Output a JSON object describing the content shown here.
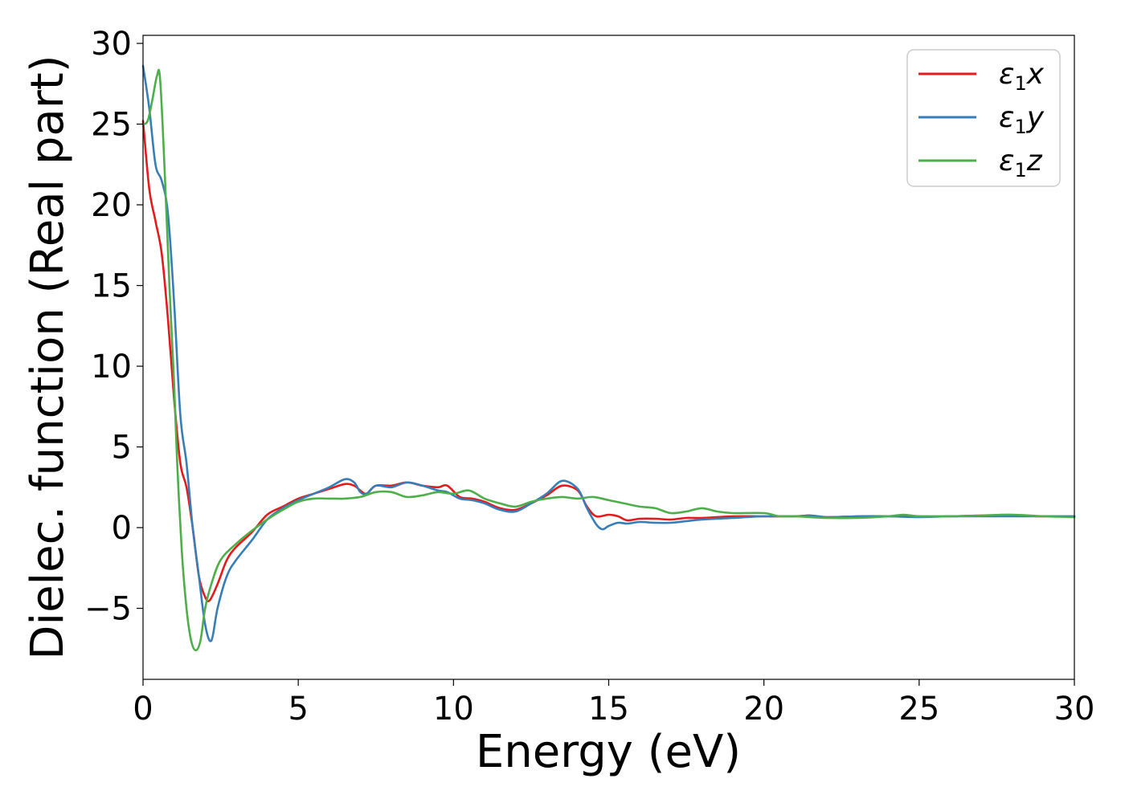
{
  "chart_data": {
    "type": "line",
    "title": "",
    "xlabel": "Energy (eV)",
    "ylabel": "Dielec. function (Real part)",
    "xlim": [
      0,
      30
    ],
    "ylim": [
      -9.4,
      30.5
    ],
    "xticks": [
      0,
      5,
      10,
      15,
      20,
      25,
      30
    ],
    "yticks": [
      -5,
      0,
      5,
      10,
      15,
      20,
      25,
      30
    ],
    "xtick_labels": [
      "0",
      "5",
      "10",
      "15",
      "20",
      "25",
      "30"
    ],
    "ytick_labels": [
      "−5",
      "0",
      "5",
      "10",
      "15",
      "20",
      "25",
      "30"
    ],
    "grid": false,
    "legend_position": "top-right",
    "series": [
      {
        "name": "ε₁x",
        "legend_base": "ε",
        "legend_sub": "1",
        "legend_var": "x",
        "color": "#e41a1c",
        "x": [
          0,
          0.2,
          0.4,
          0.6,
          0.8,
          1.0,
          1.2,
          1.4,
          1.6,
          1.8,
          2.0,
          2.15,
          2.4,
          2.7,
          3.0,
          3.5,
          4.0,
          4.5,
          5.0,
          5.5,
          6.0,
          6.5,
          6.8,
          7.0,
          7.2,
          7.5,
          8.0,
          8.5,
          9.0,
          9.5,
          9.8,
          10.2,
          10.6,
          11.0,
          11.5,
          12.0,
          12.5,
          13.0,
          13.5,
          14.0,
          14.3,
          14.6,
          15.0,
          15.3,
          15.6,
          16.0,
          16.5,
          17.0,
          17.5,
          18.0,
          19.0,
          20.0,
          21.0,
          21.5,
          22.0,
          23.0,
          24.0,
          25.0,
          26.0,
          27.0,
          28.0,
          29.0,
          30.0
        ],
        "values": [
          25.2,
          21.0,
          19.0,
          17.0,
          13.0,
          8.0,
          4.0,
          2.5,
          0.0,
          -3.0,
          -4.3,
          -4.5,
          -3.5,
          -2.0,
          -1.2,
          -0.3,
          0.8,
          1.3,
          1.8,
          2.1,
          2.4,
          2.7,
          2.6,
          2.3,
          2.1,
          2.6,
          2.6,
          2.8,
          2.6,
          2.5,
          2.6,
          1.9,
          1.8,
          1.6,
          1.2,
          1.1,
          1.5,
          2.0,
          2.6,
          2.3,
          1.3,
          0.7,
          0.8,
          0.7,
          0.45,
          0.55,
          0.55,
          0.5,
          0.6,
          0.6,
          0.7,
          0.7,
          0.7,
          0.75,
          0.65,
          0.7,
          0.7,
          0.7,
          0.7,
          0.75,
          0.75,
          0.7,
          0.7
        ]
      },
      {
        "name": "ε₁y",
        "legend_base": "ε",
        "legend_sub": "1",
        "legend_var": "y",
        "color": "#377eb8",
        "x": [
          0,
          0.2,
          0.4,
          0.6,
          0.8,
          1.0,
          1.2,
          1.4,
          1.6,
          1.8,
          2.0,
          2.2,
          2.4,
          2.7,
          3.0,
          3.5,
          4.0,
          4.5,
          5.0,
          5.5,
          6.0,
          6.5,
          6.8,
          7.0,
          7.2,
          7.5,
          8.0,
          8.5,
          9.0,
          9.5,
          9.8,
          10.2,
          10.6,
          11.0,
          11.5,
          12.0,
          12.5,
          13.0,
          13.5,
          14.0,
          14.3,
          14.6,
          14.8,
          15.0,
          15.3,
          15.6,
          16.0,
          16.5,
          17.0,
          17.5,
          18.0,
          19.0,
          20.0,
          21.0,
          21.5,
          22.0,
          23.0,
          24.0,
          25.0,
          26.0,
          27.0,
          28.0,
          29.0,
          30.0
        ],
        "values": [
          28.6,
          26.0,
          22.5,
          21.5,
          19.5,
          14.0,
          7.0,
          4.0,
          0.0,
          -3.0,
          -6.0,
          -7.0,
          -5.0,
          -3.0,
          -2.0,
          -0.8,
          0.5,
          1.2,
          1.7,
          2.1,
          2.5,
          3.0,
          2.8,
          2.2,
          2.1,
          2.6,
          2.5,
          2.8,
          2.6,
          2.3,
          2.2,
          1.8,
          1.7,
          1.5,
          1.1,
          1.0,
          1.5,
          2.1,
          2.9,
          2.4,
          1.2,
          0.2,
          -0.1,
          0.1,
          0.3,
          0.25,
          0.35,
          0.3,
          0.3,
          0.4,
          0.5,
          0.6,
          0.7,
          0.7,
          0.75,
          0.65,
          0.7,
          0.7,
          0.65,
          0.7,
          0.7,
          0.7,
          0.7,
          0.7
        ]
      },
      {
        "name": "ε₁z",
        "legend_base": "ε",
        "legend_sub": "1",
        "legend_var": "z",
        "color": "#4daf4a",
        "x": [
          0,
          0.15,
          0.3,
          0.45,
          0.55,
          0.7,
          0.85,
          1.0,
          1.1,
          1.25,
          1.4,
          1.55,
          1.7,
          1.85,
          2.0,
          2.2,
          2.5,
          3.0,
          3.5,
          4.0,
          4.5,
          5.0,
          5.5,
          6.0,
          6.5,
          7.0,
          7.5,
          8.0,
          8.5,
          9.0,
          9.5,
          10.0,
          10.5,
          11.0,
          11.5,
          12.0,
          12.5,
          13.0,
          13.5,
          14.0,
          14.5,
          15.0,
          15.5,
          16.0,
          16.5,
          17.0,
          17.5,
          18.0,
          18.5,
          19.0,
          20.0,
          20.5,
          21.0,
          22.0,
          23.0,
          24.0,
          24.5,
          25.0,
          26.0,
          27.0,
          28.0,
          29.0,
          30.0
        ],
        "values": [
          25.0,
          25.2,
          26.5,
          28.0,
          27.8,
          22.0,
          15.0,
          9.0,
          4.0,
          -1.5,
          -5.0,
          -7.0,
          -7.6,
          -7.0,
          -5.0,
          -3.5,
          -2.0,
          -1.0,
          -0.2,
          0.5,
          1.1,
          1.6,
          1.8,
          1.8,
          1.8,
          1.9,
          2.2,
          2.2,
          1.9,
          2.0,
          2.2,
          2.1,
          2.3,
          1.8,
          1.5,
          1.3,
          1.6,
          1.8,
          1.9,
          1.8,
          1.9,
          1.7,
          1.5,
          1.3,
          1.2,
          0.9,
          1.0,
          1.2,
          1.0,
          0.9,
          0.9,
          0.7,
          0.7,
          0.6,
          0.6,
          0.7,
          0.8,
          0.7,
          0.7,
          0.75,
          0.8,
          0.7,
          0.65
        ]
      }
    ]
  }
}
